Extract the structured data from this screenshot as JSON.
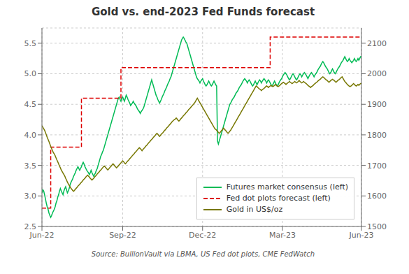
{
  "chart_data": {
    "type": "line",
    "title": "Gold vs. end-2023 Fed Funds forecast",
    "annotations": [
      "Source: BullionVault via LBMA, US Fed dot plots, CME FedWatch"
    ],
    "x": [
      0,
      1,
      2,
      3,
      4,
      5,
      6,
      7,
      8,
      9,
      10,
      11,
      12,
      13,
      14,
      15,
      16,
      17,
      18,
      19,
      20,
      21,
      22,
      23,
      24,
      25,
      26,
      27,
      28,
      29,
      30,
      31,
      32,
      33,
      34,
      35,
      36,
      37,
      38,
      39,
      40,
      41,
      42,
      43,
      44,
      45,
      46,
      47,
      48,
      49,
      50,
      51,
      52,
      53,
      54,
      55,
      56,
      57,
      58,
      59,
      60,
      61,
      62,
      63,
      64,
      65,
      66,
      67,
      68,
      69,
      70,
      71,
      72,
      73,
      74,
      75,
      76,
      77,
      78,
      79,
      80,
      81,
      82,
      83,
      84,
      85,
      86,
      87,
      88,
      89,
      90,
      91,
      92,
      93,
      94,
      95,
      96,
      97,
      98,
      99,
      100,
      101,
      102,
      103,
      104,
      105,
      106,
      107,
      108,
      109,
      110,
      111,
      112,
      113,
      114,
      115,
      116,
      117,
      118,
      119,
      120,
      121,
      122,
      123,
      124,
      125,
      126,
      127,
      128,
      129,
      130,
      131,
      132,
      133,
      134,
      135,
      136,
      137,
      138,
      139,
      140,
      141,
      142,
      143,
      144,
      145,
      146,
      147,
      148,
      149,
      150,
      151,
      152,
      153,
      154,
      155,
      156,
      157,
      158,
      159,
      160,
      161,
      162,
      163,
      164,
      165,
      166,
      167,
      168,
      169,
      170,
      171,
      172,
      173,
      174,
      175,
      176,
      177,
      178,
      179,
      180,
      181,
      182,
      183,
      184,
      185,
      186,
      187,
      188,
      189,
      190,
      191,
      192,
      193,
      194,
      195,
      196,
      197,
      198,
      199,
      200,
      201,
      202,
      203,
      204,
      205,
      206,
      207,
      208,
      209,
      210,
      211,
      212,
      213,
      214,
      215,
      216,
      217,
      218,
      219,
      220,
      221,
      222,
      223,
      224,
      225,
      226,
      227,
      228,
      229,
      230,
      231,
      232,
      233,
      234,
      235,
      236,
      237,
      238,
      239,
      240,
      241,
      242,
      243,
      244,
      245,
      246,
      247,
      248,
      249,
      250,
      251,
      252,
      253,
      254,
      255,
      256,
      257,
      258,
      259,
      260,
      261,
      262,
      263,
      264,
      265,
      266,
      267,
      268,
      269,
      270,
      271,
      272,
      273,
      274,
      275,
      276,
      277,
      278,
      279,
      280,
      281,
      282,
      283,
      284,
      285,
      286,
      287,
      288,
      289,
      290,
      291,
      292,
      293,
      294,
      295,
      296,
      297,
      298,
      299,
      300,
      301,
      302,
      303,
      304,
      305,
      306,
      307,
      308,
      309,
      310,
      311,
      312,
      313,
      314,
      315,
      316,
      317,
      318,
      319,
      320,
      321,
      322,
      323,
      324,
      325,
      326,
      327,
      328,
      329,
      330,
      331,
      332,
      333,
      334,
      335,
      336,
      337,
      338,
      339,
      340,
      341,
      342,
      343,
      344,
      345,
      346,
      347,
      348,
      349,
      350,
      351,
      352,
      353,
      354,
      355,
      356,
      357,
      358,
      359,
      360,
      361,
      362,
      363,
      364
    ],
    "xlim": [
      0,
      364
    ],
    "xticks": [
      {
        "value": 0,
        "label": "Jun-22"
      },
      {
        "value": 92,
        "label": "Sep-22"
      },
      {
        "value": 183,
        "label": "Dec-22"
      },
      {
        "value": 274,
        "label": "Mar-23"
      },
      {
        "value": 364,
        "label": "Jun-23"
      }
    ],
    "ylim": [
      2.5,
      5.75
    ],
    "yticks": [
      2.5,
      {
        "value": 3,
        "label": "3.0"
      },
      3.5,
      {
        "value": 4,
        "label": "4.0"
      },
      4.5,
      {
        "value": 5,
        "label": "5.0"
      },
      5.5
    ],
    "y2lim": [
      1500,
      2150
    ],
    "y2ticks": [
      1500,
      1600,
      1700,
      1800,
      1900,
      2000,
      2100
    ],
    "grid": true,
    "legend": "lower right",
    "series": [
      {
        "name": "Futures market consensus (left)",
        "color": "#00bb55",
        "line_style": "solid",
        "values": [
          3.05,
          3.1,
          3.08,
          3.02,
          2.95,
          2.88,
          2.82,
          2.78,
          2.72,
          2.68,
          2.65,
          2.68,
          2.72,
          2.75,
          2.78,
          2.82,
          2.88,
          2.92,
          2.98,
          3.02,
          3.08,
          3.12,
          3.08,
          3.05,
          3.02,
          3.08,
          3.12,
          3.15,
          3.1,
          3.05,
          3.08,
          3.12,
          3.18,
          3.22,
          3.25,
          3.28,
          3.32,
          3.35,
          3.38,
          3.42,
          3.45,
          3.48,
          3.45,
          3.42,
          3.45,
          3.48,
          3.52,
          3.55,
          3.52,
          3.48,
          3.45,
          3.42,
          3.4,
          3.38,
          3.35,
          3.38,
          3.42,
          3.38,
          3.35,
          3.32,
          3.35,
          3.38,
          3.42,
          3.45,
          3.5,
          3.55,
          3.6,
          3.65,
          3.68,
          3.72,
          3.75,
          3.8,
          3.85,
          3.9,
          3.95,
          4.0,
          4.05,
          4.1,
          4.15,
          4.2,
          4.25,
          4.3,
          4.35,
          4.4,
          4.45,
          4.5,
          4.55,
          4.6,
          4.62,
          4.58,
          4.55,
          4.6,
          4.62,
          4.58,
          4.55,
          4.6,
          4.65,
          4.62,
          4.58,
          4.55,
          4.52,
          4.48,
          4.5,
          4.52,
          4.55,
          4.52,
          4.5,
          4.48,
          4.45,
          4.42,
          4.4,
          4.38,
          4.35,
          4.38,
          4.4,
          4.42,
          4.45,
          4.5,
          4.55,
          4.6,
          4.65,
          4.7,
          4.75,
          4.8,
          4.85,
          4.9,
          4.85,
          4.8,
          4.75,
          4.7,
          4.65,
          4.62,
          4.58,
          4.55,
          4.52,
          4.55,
          4.58,
          4.62,
          4.65,
          4.68,
          4.72,
          4.75,
          4.78,
          4.82,
          4.85,
          4.88,
          4.92,
          4.95,
          5.0,
          5.05,
          5.1,
          5.15,
          5.2,
          5.25,
          5.3,
          5.35,
          5.4,
          5.45,
          5.5,
          5.55,
          5.58,
          5.6,
          5.58,
          5.55,
          5.52,
          5.5,
          5.45,
          5.4,
          5.35,
          5.3,
          5.25,
          5.2,
          5.15,
          5.1,
          5.05,
          5.0,
          4.95,
          4.92,
          4.9,
          4.88,
          4.85,
          4.88,
          4.9,
          4.92,
          4.88,
          4.85,
          4.82,
          4.8,
          4.82,
          4.85,
          4.88,
          4.85,
          4.82,
          4.8,
          4.82,
          4.85,
          4.88,
          4.85,
          4.82,
          4.8,
          3.9,
          3.85,
          3.9,
          3.95,
          4.0,
          4.05,
          4.1,
          4.15,
          4.2,
          4.25,
          4.3,
          4.35,
          4.4,
          4.45,
          4.5,
          4.52,
          4.55,
          4.58,
          4.6,
          4.62,
          4.65,
          4.68,
          4.7,
          4.72,
          4.75,
          4.78,
          4.8,
          4.82,
          4.85,
          4.88,
          4.9,
          4.92,
          4.9,
          4.88,
          4.85,
          4.88,
          4.9,
          4.88,
          4.85,
          4.82,
          4.8,
          4.82,
          4.85,
          4.88,
          4.85,
          4.82,
          4.85,
          4.88,
          4.9,
          4.88,
          4.85,
          4.88,
          4.9,
          4.92,
          4.9,
          4.88,
          4.85,
          4.88,
          4.9,
          4.88,
          4.85,
          4.82,
          4.8,
          4.82,
          4.85,
          4.88,
          4.85,
          4.82,
          4.8,
          4.82,
          4.85,
          4.88,
          4.9,
          4.92,
          4.95,
          4.98,
          5.0,
          5.02,
          5.0,
          4.98,
          4.95,
          4.92,
          4.9,
          4.92,
          4.95,
          4.98,
          5.0,
          4.98,
          4.95,
          4.92,
          4.9,
          4.92,
          4.95,
          4.98,
          5.0,
          4.98,
          4.95,
          4.98,
          5.0,
          5.02,
          5.0,
          4.98,
          4.95,
          4.92,
          4.95,
          4.98,
          5.0,
          5.02,
          5.0,
          4.98,
          4.95,
          4.98,
          5.0,
          5.02,
          5.05,
          5.08,
          5.1,
          5.12,
          5.15,
          5.18,
          5.2,
          5.18,
          5.15,
          5.12,
          5.1,
          5.08,
          5.05,
          5.02,
          5.0,
          5.02,
          5.05,
          5.08,
          5.05,
          5.02,
          5.0,
          5.02,
          5.05,
          5.08,
          5.1,
          5.12,
          5.15,
          5.18,
          5.2,
          5.22,
          5.25,
          5.28,
          5.25,
          5.22,
          5.2,
          5.22,
          5.25,
          5.22,
          5.2,
          5.18,
          5.2,
          5.22,
          5.25,
          5.22,
          5.2,
          5.22,
          5.25,
          5.22,
          5.25,
          5.28,
          5.28
        ]
      },
      {
        "name": "Fed dot plots forecast (left)",
        "color": "#dd0000",
        "line_style": "dashed",
        "x": [
          0,
          10,
          10,
          45,
          45,
          90,
          90,
          175,
          175,
          260,
          260,
          364
        ],
        "values": [
          2.8,
          2.8,
          3.8,
          3.8,
          4.6,
          4.6,
          5.1,
          5.1,
          5.1,
          5.1,
          5.6,
          5.6
        ]
      },
      {
        "name": "Gold in US$/oz",
        "color": "#777700",
        "line_style": "solid",
        "axis": "y2",
        "values": [
          1830,
          1825,
          1820,
          1815,
          1808,
          1800,
          1792,
          1785,
          1778,
          1770,
          1762,
          1755,
          1748,
          1742,
          1738,
          1732,
          1725,
          1718,
          1712,
          1705,
          1698,
          1692,
          1685,
          1680,
          1675,
          1670,
          1665,
          1658,
          1652,
          1645,
          1640,
          1635,
          1630,
          1625,
          1622,
          1618,
          1615,
          1618,
          1622,
          1625,
          1628,
          1632,
          1635,
          1638,
          1642,
          1645,
          1648,
          1652,
          1655,
          1658,
          1662,
          1665,
          1668,
          1665,
          1662,
          1658,
          1655,
          1652,
          1655,
          1658,
          1662,
          1665,
          1668,
          1672,
          1675,
          1678,
          1682,
          1685,
          1688,
          1692,
          1695,
          1698,
          1695,
          1692,
          1688,
          1685,
          1688,
          1692,
          1695,
          1698,
          1702,
          1705,
          1702,
          1698,
          1695,
          1692,
          1695,
          1698,
          1702,
          1705,
          1708,
          1712,
          1715,
          1712,
          1708,
          1705,
          1708,
          1712,
          1715,
          1718,
          1722,
          1725,
          1728,
          1732,
          1735,
          1738,
          1742,
          1745,
          1748,
          1752,
          1755,
          1758,
          1755,
          1752,
          1748,
          1752,
          1755,
          1758,
          1762,
          1765,
          1768,
          1772,
          1775,
          1778,
          1782,
          1785,
          1788,
          1792,
          1795,
          1798,
          1802,
          1805,
          1802,
          1798,
          1795,
          1798,
          1802,
          1805,
          1808,
          1812,
          1815,
          1818,
          1822,
          1825,
          1828,
          1832,
          1835,
          1838,
          1842,
          1845,
          1848,
          1850,
          1852,
          1855,
          1852,
          1848,
          1845,
          1848,
          1852,
          1855,
          1858,
          1862,
          1865,
          1868,
          1872,
          1875,
          1878,
          1882,
          1885,
          1888,
          1892,
          1895,
          1898,
          1902,
          1905,
          1910,
          1915,
          1920,
          1915,
          1910,
          1905,
          1900,
          1895,
          1890,
          1885,
          1880,
          1875,
          1870,
          1865,
          1860,
          1855,
          1850,
          1845,
          1840,
          1835,
          1830,
          1825,
          1820,
          1818,
          1815,
          1812,
          1808,
          1805,
          1808,
          1812,
          1815,
          1818,
          1822,
          1818,
          1815,
          1812,
          1808,
          1805,
          1808,
          1812,
          1815,
          1820,
          1825,
          1830,
          1835,
          1840,
          1845,
          1850,
          1855,
          1860,
          1865,
          1870,
          1875,
          1880,
          1885,
          1890,
          1895,
          1900,
          1905,
          1910,
          1915,
          1920,
          1925,
          1930,
          1935,
          1940,
          1945,
          1950,
          1955,
          1960,
          1958,
          1955,
          1952,
          1950,
          1948,
          1945,
          1948,
          1950,
          1952,
          1955,
          1958,
          1960,
          1958,
          1955,
          1958,
          1960,
          1962,
          1960,
          1958,
          1960,
          1962,
          1965,
          1962,
          1960,
          1958,
          1960,
          1962,
          1965,
          1968,
          1970,
          1972,
          1970,
          1968,
          1965,
          1968,
          1970,
          1972,
          1975,
          1972,
          1970,
          1968,
          1970,
          1972,
          1975,
          1972,
          1970,
          1972,
          1975,
          1978,
          1975,
          1972,
          1970,
          1972,
          1975,
          1972,
          1970,
          1968,
          1965,
          1962,
          1960,
          1958,
          1955,
          1958,
          1960,
          1962,
          1965,
          1968,
          1970,
          1972,
          1975,
          1978,
          1980,
          1982,
          1985,
          1988,
          1990,
          1988,
          1985,
          1982,
          1980,
          1978,
          1975,
          1972,
          1975,
          1978,
          1980,
          1982,
          1980,
          1978,
          1975,
          1972,
          1975,
          1978,
          1980,
          1982,
          1985,
          1988,
          1990,
          1985,
          1980,
          1975,
          1972,
          1968,
          1965,
          1962,
          1960,
          1958,
          1960,
          1962,
          1965,
          1968,
          1965,
          1962,
          1960,
          1962,
          1965,
          1962,
          1965,
          1968,
          1968
        ]
      }
    ]
  }
}
